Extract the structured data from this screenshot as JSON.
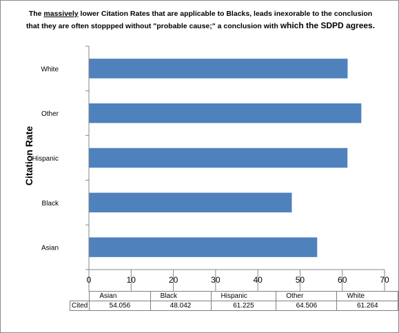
{
  "title": {
    "part1": "The ",
    "underlined": "massively",
    "part2": " lower Citation Rates that are applicable to Blacks, leads inexorable to the conclusion",
    "line2a": "that they are often stoppped without \"probable cause;\"  a conclusion with ",
    "line2b": "which the SDPD agrees."
  },
  "chart_data": {
    "type": "bar",
    "orientation": "horizontal",
    "categories": [
      "Asian",
      "Black",
      "Hispanic",
      "Other",
      "White"
    ],
    "series": [
      {
        "name": "Cited",
        "values": [
          54.056,
          48.042,
          61.225,
          64.506,
          61.264
        ]
      }
    ],
    "ylabel": "Citation Rate",
    "xlim": [
      0,
      70
    ],
    "xticks": [
      0,
      10,
      20,
      30,
      40,
      50,
      60,
      70
    ],
    "grid": false,
    "bar_color": "#4F81BD",
    "data_table": {
      "row_label": "Cited",
      "values_text": [
        "54.056",
        "48.042",
        "61.225",
        "64.506",
        "61.264"
      ]
    }
  }
}
